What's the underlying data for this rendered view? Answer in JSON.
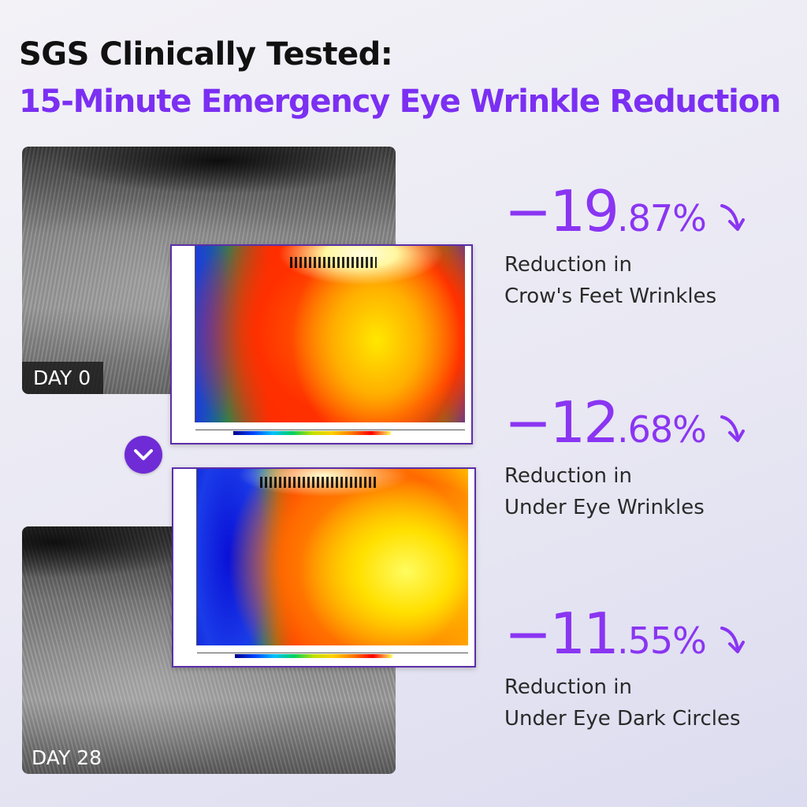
{
  "header": {
    "line1": "SGS Clinically Tested:",
    "line2": "15-Minute Emergency Eye Wrinkle Reduction"
  },
  "photos": {
    "before_label": "DAY 0",
    "after_label": "DAY 28"
  },
  "icons": {
    "transition": "chevron-down-icon",
    "trend": "arrow-down-icon"
  },
  "stats": [
    {
      "integer": "−19",
      "decimal": ".87%",
      "line1": "Reduction in",
      "line2": "Crow's Feet Wrinkles"
    },
    {
      "integer": "−12",
      "decimal": ".68%",
      "line1": "Reduction in",
      "line2": "Under Eye Wrinkles"
    },
    {
      "integer": "−11",
      "decimal": ".55%",
      "line1": "Reduction in",
      "line2": "Under Eye Dark Circles"
    }
  ],
  "colors": {
    "accent": "#8a35f2",
    "title_accent": "#7b2ff2",
    "badge": "#6f2bd6"
  }
}
